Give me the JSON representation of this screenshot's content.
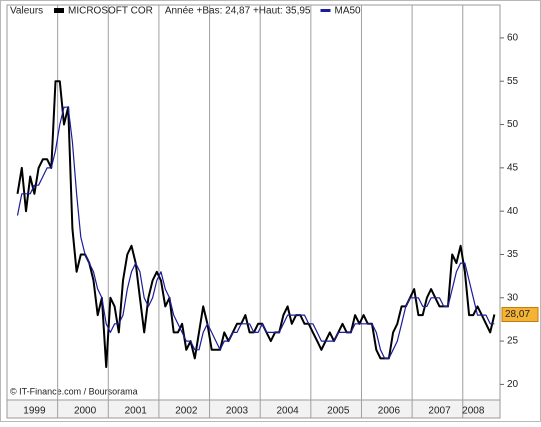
{
  "chart_data": {
    "type": "line",
    "legend_title": "Valeurs",
    "range_text": "Année +Bas: 24,87 +Haut: 35,95",
    "credit": "© IT-Finance.com / Boursorama",
    "categories": [
      null,
      null,
      null,
      null,
      "1999",
      null,
      null,
      null,
      null,
      null,
      null,
      null,
      null,
      null,
      null,
      null,
      "2000",
      null,
      null,
      null,
      null,
      null,
      null,
      null,
      null,
      null,
      null,
      null,
      "2001",
      null,
      null,
      null,
      null,
      null,
      null,
      null,
      null,
      null,
      null,
      null,
      "2002",
      null,
      null,
      null,
      null,
      null,
      null,
      null,
      null,
      null,
      null,
      null,
      "2003",
      null,
      null,
      null,
      null,
      null,
      null,
      null,
      null,
      null,
      null,
      null,
      "2004",
      null,
      null,
      null,
      null,
      null,
      null,
      null,
      null,
      null,
      null,
      null,
      "2005",
      null,
      null,
      null,
      null,
      null,
      null,
      null,
      null,
      null,
      null,
      null,
      "2006",
      null,
      null,
      null,
      null,
      null,
      null,
      null,
      null,
      null,
      null,
      null,
      "2007",
      null,
      null,
      null,
      null,
      null,
      null,
      null,
      "2008",
      null,
      null,
      null,
      null,
      null
    ],
    "series": [
      {
        "name": "MICROSOFT COR",
        "color": "#000000",
        "values": [
          42,
          45,
          40,
          44,
          42,
          45,
          46,
          46,
          45,
          55,
          55,
          50,
          52,
          38,
          33,
          35,
          35,
          34,
          32,
          28,
          30,
          22,
          30,
          29,
          26,
          32,
          35,
          36,
          34,
          30,
          26,
          30,
          32,
          33,
          32,
          29,
          30,
          26,
          26,
          27,
          24,
          25,
          23,
          26,
          29,
          27,
          24,
          24,
          24,
          26,
          25,
          26,
          27,
          27,
          28,
          26,
          26,
          27,
          27,
          26,
          25,
          26,
          26,
          28,
          29,
          27,
          28,
          28,
          27,
          27,
          26,
          25,
          24,
          25,
          26,
          25,
          26,
          27,
          26,
          26,
          28,
          27,
          28,
          27,
          27,
          24,
          23,
          23,
          23,
          26,
          27,
          29,
          29,
          30,
          31,
          28,
          28,
          30,
          31,
          30,
          29,
          29,
          29,
          35,
          34,
          36,
          33,
          28,
          28,
          29,
          28,
          27,
          26,
          28.07
        ],
        "last_label": "28,07"
      },
      {
        "name": "MA50",
        "color": "#1c1c9c",
        "values": [
          39.5,
          42,
          42,
          42,
          43,
          43,
          44,
          45,
          45,
          47,
          50,
          52,
          52,
          48,
          42,
          37,
          35,
          34,
          33,
          31,
          30,
          27,
          26,
          27,
          27,
          28,
          31,
          33,
          34,
          33,
          30,
          29,
          30,
          32,
          33,
          31,
          30,
          28,
          27,
          26,
          25,
          25,
          24,
          24,
          26,
          27,
          26,
          25,
          24,
          25,
          25,
          26,
          26,
          27,
          27,
          27,
          26,
          26,
          27,
          26,
          26,
          26,
          26,
          27,
          28,
          28,
          28,
          28,
          28,
          27,
          27,
          26,
          25,
          25,
          25,
          25,
          26,
          26,
          26,
          26,
          27,
          27,
          27,
          27,
          27,
          26,
          24,
          23,
          23,
          24,
          25,
          27,
          29,
          30,
          30,
          30,
          29,
          29,
          30,
          30,
          30,
          29,
          29,
          31,
          33,
          34,
          34,
          32,
          30,
          28,
          28,
          28,
          27,
          27
        ]
      }
    ],
    "ylim": [
      18.2,
      63.8
    ],
    "yticks": [
      20,
      25,
      30,
      35,
      40,
      45,
      50,
      55,
      60
    ],
    "grid": "x"
  }
}
